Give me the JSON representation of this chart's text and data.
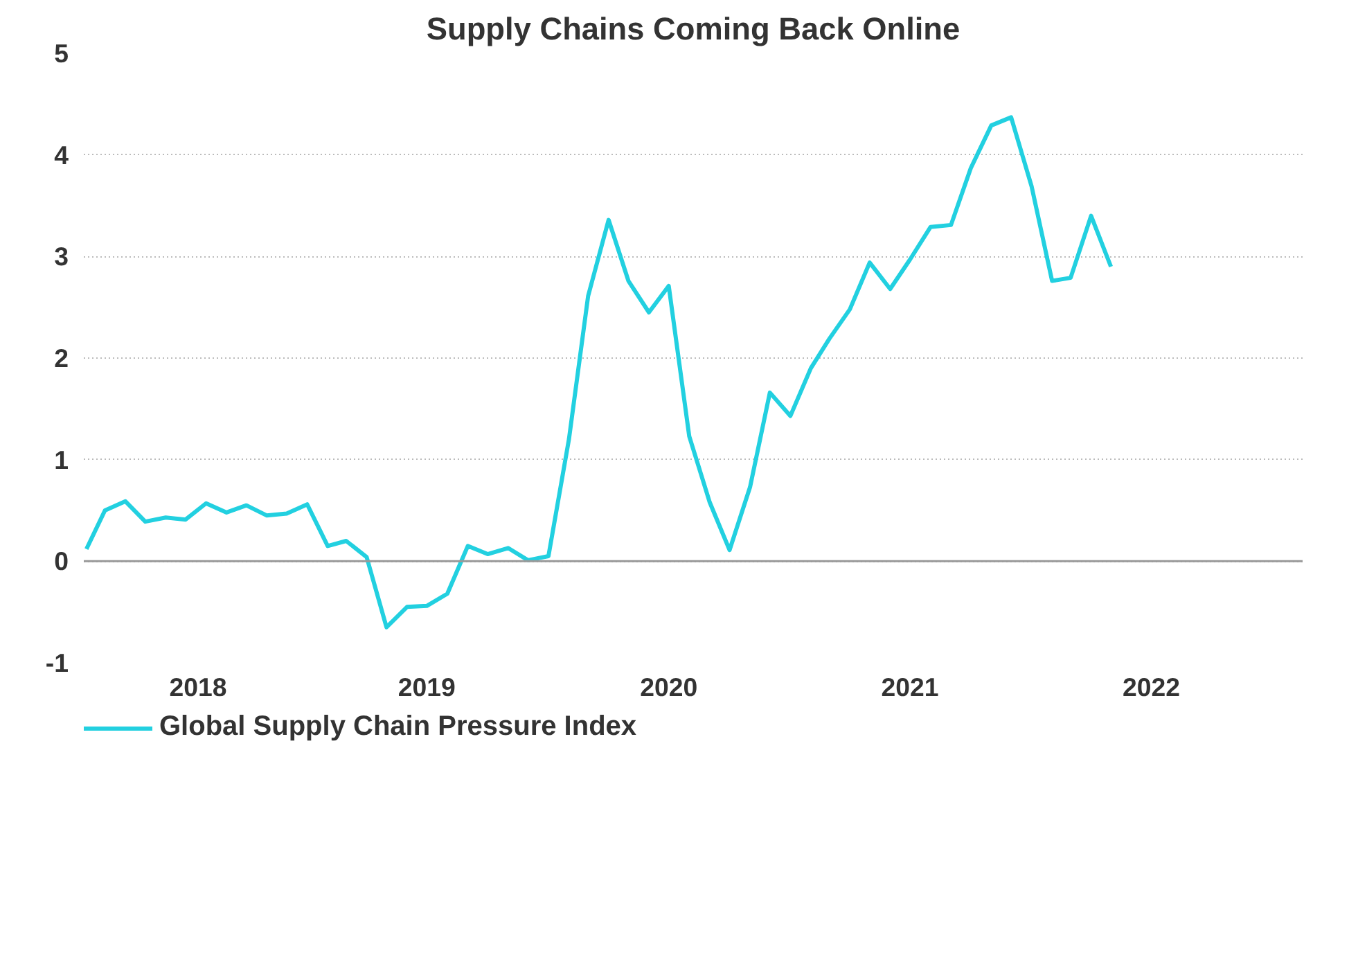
{
  "chart_data": {
    "type": "line",
    "title": "Supply Chains Coming Back Online",
    "x": [
      "2018-02",
      "2018-03",
      "2018-04",
      "2018-05",
      "2018-06",
      "2018-07",
      "2018-08",
      "2018-09",
      "2018-10",
      "2018-11",
      "2018-12",
      "2019-01",
      "2019-02",
      "2019-03",
      "2019-04",
      "2019-05",
      "2019-06",
      "2019-07",
      "2019-08",
      "2019-09",
      "2019-10",
      "2019-11",
      "2019-12",
      "2020-01",
      "2020-02",
      "2020-03",
      "2020-04",
      "2020-05",
      "2020-06",
      "2020-07",
      "2020-08",
      "2020-09",
      "2020-10",
      "2020-11",
      "2020-12",
      "2021-01",
      "2021-02",
      "2021-03",
      "2021-04",
      "2021-05",
      "2021-06",
      "2021-07",
      "2021-08",
      "2021-09",
      "2021-10",
      "2021-11",
      "2021-12",
      "2022-01",
      "2022-02",
      "2022-03",
      "2022-04",
      "2022-05"
    ],
    "series": [
      {
        "name": "Global Supply Chain Pressure Index",
        "color": "#22d0e0",
        "values": [
          0.12,
          0.5,
          0.59,
          0.39,
          0.43,
          0.41,
          0.57,
          0.48,
          0.55,
          0.45,
          0.47,
          0.56,
          0.15,
          0.2,
          0.04,
          -0.65,
          -0.45,
          -0.44,
          -0.32,
          0.15,
          0.07,
          0.13,
          0.01,
          0.05,
          1.2,
          2.61,
          3.36,
          2.76,
          2.45,
          2.71,
          1.23,
          0.58,
          0.11,
          0.73,
          1.66,
          1.43,
          1.9,
          2.19,
          2.48,
          2.94,
          2.68,
          2.97,
          3.29,
          3.31,
          3.87,
          4.29,
          4.37,
          3.69,
          2.76,
          2.79,
          3.4,
          2.9
        ]
      }
    ],
    "xlim": [
      "2018-01-28",
      "2023-02-15"
    ],
    "xticks": [
      {
        "value": "2018-07-20",
        "label": "2018"
      },
      {
        "value": "2019-07-01",
        "label": "2019"
      },
      {
        "value": "2020-07-01",
        "label": "2020"
      },
      {
        "value": "2021-07-01",
        "label": "2021"
      },
      {
        "value": "2022-07-01",
        "label": "2022"
      }
    ],
    "ylim": [
      -1,
      5
    ],
    "yticks": [
      -1,
      0,
      1,
      2,
      3,
      4,
      5
    ],
    "ref_lines": [
      {
        "axis": "y",
        "value": 0,
        "color": "#999999"
      }
    ],
    "grid": "y",
    "legend": "bottom",
    "line_style": "solid",
    "marker": "none"
  }
}
